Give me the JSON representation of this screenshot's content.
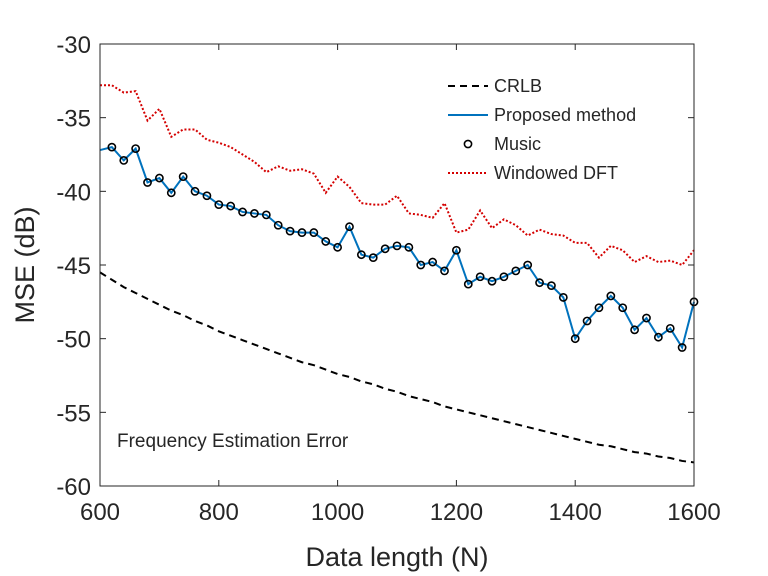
{
  "chart_data": {
    "type": "line",
    "xlabel": "Data length (N)",
    "ylabel": "MSE (dB)",
    "annotation": "Frequency Estimation Error",
    "xlim": [
      600,
      1600
    ],
    "ylim": [
      -60,
      -30
    ],
    "xticks": [
      "600",
      "800",
      "1000",
      "1200",
      "1400",
      "1600"
    ],
    "yticks": [
      "-60",
      "-55",
      "-50",
      "-45",
      "-40",
      "-35",
      "-30"
    ],
    "grid": false,
    "legend_position": "top-right",
    "x": [
      600,
      620,
      640,
      660,
      680,
      700,
      720,
      740,
      760,
      780,
      800,
      820,
      840,
      860,
      880,
      900,
      920,
      940,
      960,
      980,
      1000,
      1020,
      1040,
      1060,
      1080,
      1100,
      1120,
      1140,
      1160,
      1180,
      1200,
      1220,
      1240,
      1260,
      1280,
      1300,
      1320,
      1340,
      1360,
      1380,
      1400,
      1420,
      1440,
      1460,
      1480,
      1500,
      1520,
      1540,
      1560,
      1580,
      1600
    ],
    "series": [
      {
        "name": "CRLB",
        "style": "dashed",
        "color": "#000000",
        "values": [
          -45.5,
          -46.0,
          -46.5,
          -46.9,
          -47.3,
          -47.7,
          -48.1,
          -48.4,
          -48.8,
          -49.1,
          -49.5,
          -49.8,
          -50.1,
          -50.4,
          -50.7,
          -51.0,
          -51.3,
          -51.6,
          -51.8,
          -52.1,
          -52.4,
          -52.6,
          -52.9,
          -53.1,
          -53.4,
          -53.6,
          -53.9,
          -54.1,
          -54.3,
          -54.6,
          -54.8,
          -55.0,
          -55.2,
          -55.4,
          -55.6,
          -55.8,
          -56.0,
          -56.2,
          -56.4,
          -56.6,
          -56.8,
          -57.0,
          -57.2,
          -57.3,
          -57.5,
          -57.7,
          -57.8,
          -58.0,
          -58.1,
          -58.3,
          -58.4
        ]
      },
      {
        "name": "Proposed method",
        "style": "solid",
        "color": "#0072BD",
        "values": [
          -37.2,
          -37.0,
          -37.9,
          -37.1,
          -39.4,
          -39.1,
          -40.1,
          -39.0,
          -40.0,
          -40.3,
          -40.9,
          -41.0,
          -41.4,
          -41.5,
          -41.6,
          -42.3,
          -42.7,
          -42.8,
          -42.8,
          -43.4,
          -43.8,
          -42.4,
          -44.3,
          -44.5,
          -43.9,
          -43.7,
          -43.8,
          -45.0,
          -44.8,
          -45.4,
          -44.0,
          -46.3,
          -45.8,
          -46.1,
          -45.8,
          -45.4,
          -45.0,
          -46.2,
          -46.4,
          -47.2,
          -50.0,
          -48.8,
          -47.9,
          -47.1,
          -47.9,
          -49.4,
          -48.6,
          -49.9,
          -49.3,
          -50.6,
          -47.5
        ]
      },
      {
        "name": "Music",
        "style": "markers",
        "color": "#000000",
        "x": [
          620,
          640,
          660,
          680,
          700,
          720,
          740,
          760,
          780,
          800,
          820,
          840,
          860,
          880,
          900,
          920,
          940,
          960,
          980,
          1000,
          1020,
          1040,
          1060,
          1080,
          1100,
          1120,
          1140,
          1160,
          1180,
          1200,
          1220,
          1240,
          1260,
          1280,
          1300,
          1320,
          1340,
          1360,
          1380,
          1400,
          1420,
          1440,
          1460,
          1480,
          1500,
          1520,
          1540,
          1560,
          1580,
          1600
        ],
        "values": [
          -37.0,
          -37.9,
          -37.1,
          -39.4,
          -39.1,
          -40.1,
          -39.0,
          -40.0,
          -40.3,
          -40.9,
          -41.0,
          -41.4,
          -41.5,
          -41.6,
          -42.3,
          -42.7,
          -42.8,
          -42.8,
          -43.4,
          -43.8,
          -42.4,
          -44.3,
          -44.5,
          -43.9,
          -43.7,
          -43.8,
          -45.0,
          -44.8,
          -45.4,
          -44.0,
          -46.3,
          -45.8,
          -46.1,
          -45.8,
          -45.4,
          -45.0,
          -46.2,
          -46.4,
          -47.2,
          -50.0,
          -48.8,
          -47.9,
          -47.1,
          -47.9,
          -49.4,
          -48.6,
          -49.9,
          -49.3,
          -50.6,
          -47.5
        ]
      },
      {
        "name": "Windowed DFT",
        "style": "dotted",
        "color": "#D40000",
        "values": [
          -32.8,
          -32.8,
          -33.3,
          -33.2,
          -35.2,
          -34.4,
          -36.3,
          -35.8,
          -35.8,
          -36.5,
          -36.7,
          -37.0,
          -37.5,
          -38.0,
          -38.7,
          -38.3,
          -38.6,
          -38.5,
          -38.8,
          -40.1,
          -39.0,
          -39.7,
          -40.8,
          -40.9,
          -40.9,
          -40.3,
          -41.5,
          -41.6,
          -41.8,
          -40.8,
          -42.8,
          -42.6,
          -41.3,
          -42.5,
          -41.9,
          -42.3,
          -43.0,
          -42.6,
          -42.9,
          -43.0,
          -43.5,
          -43.5,
          -44.5,
          -43.7,
          -44.0,
          -44.8,
          -44.4,
          -44.8,
          -44.7,
          -45.0,
          -44.0
        ]
      }
    ]
  }
}
